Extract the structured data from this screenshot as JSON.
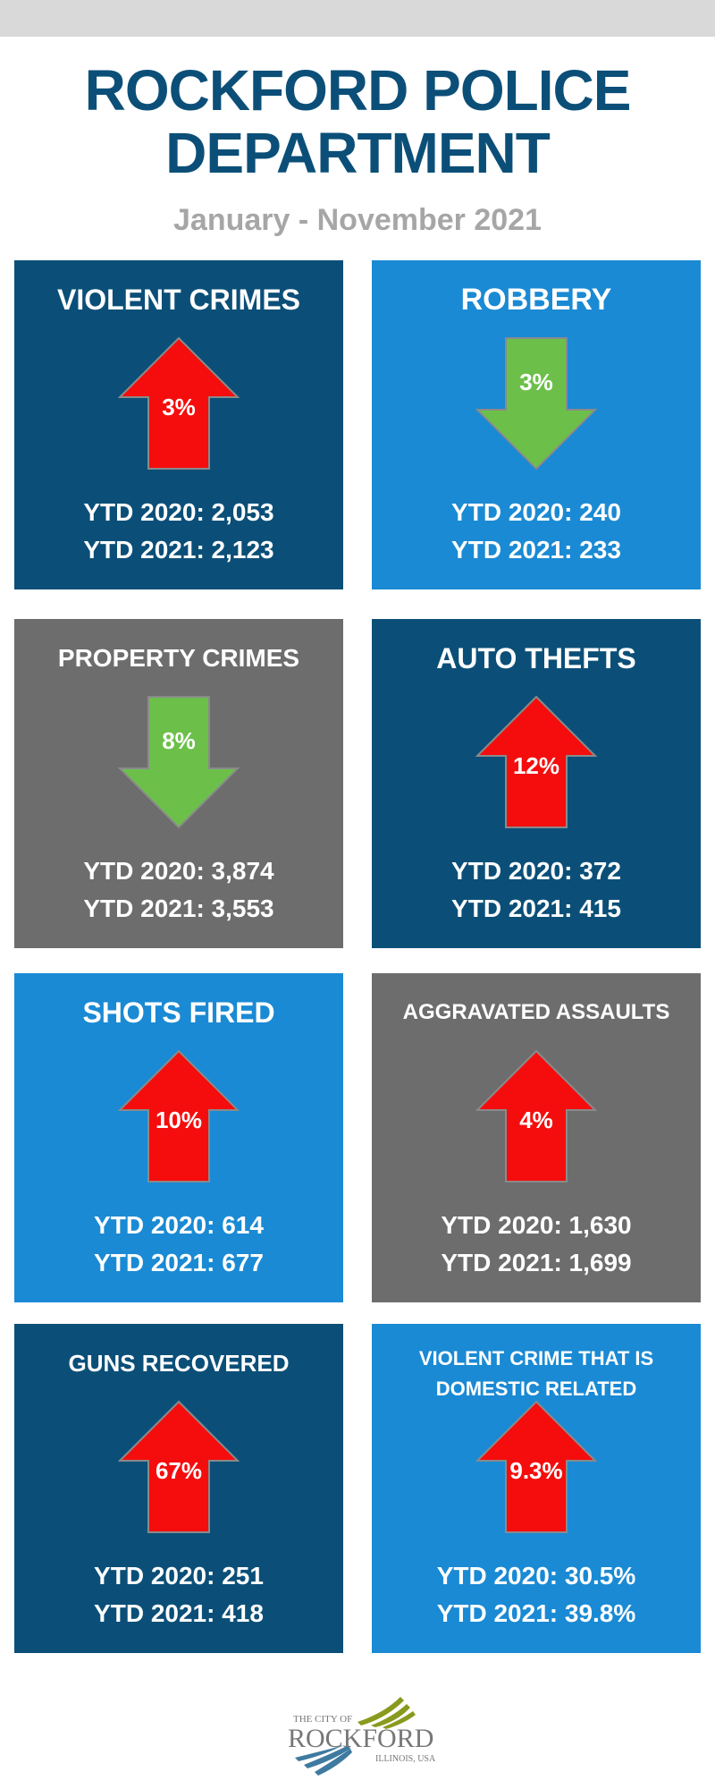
{
  "header": {
    "title_line1": "ROCKFORD POLICE",
    "title_line2": "DEPARTMENT",
    "subtitle": "January - November 2021"
  },
  "colors": {
    "dark_blue": "#0b4f78",
    "light_blue": "#1a8ad4",
    "gray": "#6d6d6d",
    "increase": "#f50d0d",
    "decrease": "#6cc04a"
  },
  "panels": [
    {
      "title": "VIOLENT CRIMES",
      "direction": "up",
      "percent": "3%",
      "ytd2020": "YTD 2020: 2,053",
      "ytd2021": "YTD 2021:  2,123"
    },
    {
      "title": "ROBBERY",
      "direction": "down",
      "percent": "3%",
      "ytd2020": "YTD 2020: 240",
      "ytd2021": "YTD 2021: 233"
    },
    {
      "title": "PROPERTY CRIMES",
      "direction": "down",
      "percent": "8%",
      "ytd2020": "YTD 2020: 3,874",
      "ytd2021": "YTD 2021:  3,553"
    },
    {
      "title": "AUTO THEFTS",
      "direction": "up",
      "percent": "12%",
      "ytd2020": "YTD 2020: 372",
      "ytd2021": "YTD 2021:  415"
    },
    {
      "title": "SHOTS FIRED",
      "direction": "up",
      "percent": "10%",
      "ytd2020": "YTD 2020: 614",
      "ytd2021": "YTD 2021:  677"
    },
    {
      "title": "AGGRAVATED ASSAULTS",
      "direction": "up",
      "percent": "4%",
      "ytd2020": "YTD 2020: 1,630",
      "ytd2021": "YTD 2021: 1,699"
    },
    {
      "title": "GUNS RECOVERED",
      "direction": "up",
      "percent": "67%",
      "ytd2020": "YTD 2020: 251",
      "ytd2021": "YTD 2021:  418"
    },
    {
      "title_line1": "VIOLENT CRIME THAT IS",
      "title_line2": "DOMESTIC RELATED",
      "direction": "up",
      "percent": "9.3%",
      "ytd2020": "YTD 2020: 30.5%",
      "ytd2021": "YTD 2021:  39.8%"
    }
  ],
  "footer": {
    "logo_top": "THE CITY OF",
    "logo_name": "ROCKFORD",
    "logo_sub": "ILLINOIS, USA"
  }
}
